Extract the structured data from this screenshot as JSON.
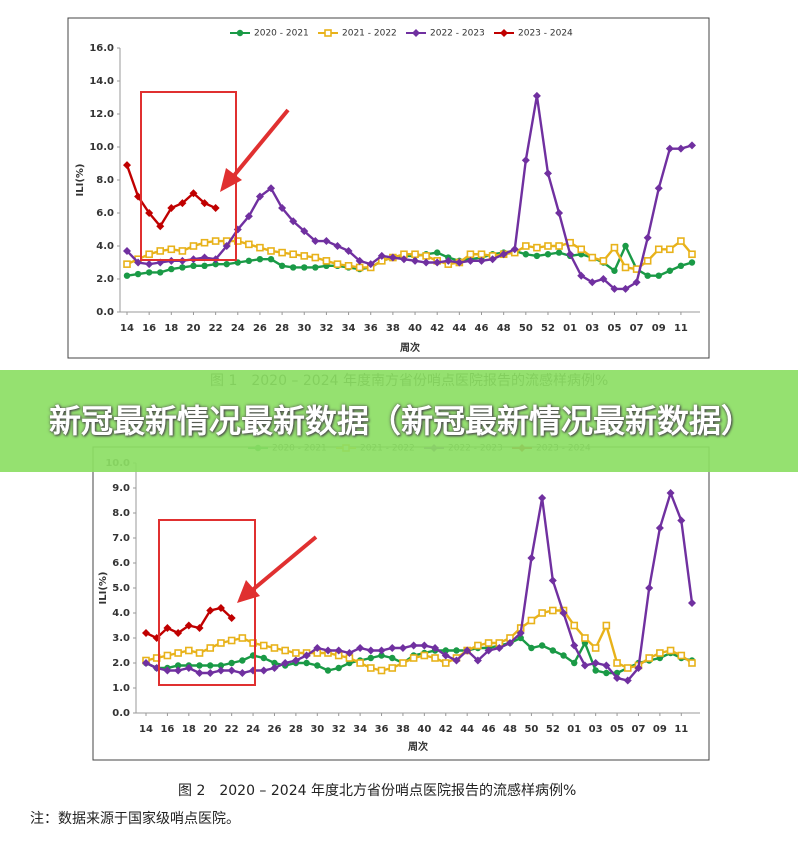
{
  "chart_data": [
    {
      "type": "line",
      "title": "图 1　2020 – 2024 年度南方省份哨点医院报告的流感样病例%",
      "x_label": "周次",
      "y_label": "ILI(%)",
      "categories": [
        "14",
        null,
        "16",
        null,
        "18",
        null,
        "20",
        null,
        "22",
        null,
        "24",
        null,
        "26",
        null,
        "28",
        null,
        "30",
        null,
        "32",
        null,
        "34",
        null,
        "36",
        null,
        "38",
        null,
        "40",
        null,
        "42",
        null,
        "44",
        null,
        "46",
        null,
        "48",
        null,
        "50",
        null,
        "52",
        null,
        "01",
        null,
        "03",
        null,
        "05",
        null,
        "07",
        null,
        "09",
        null,
        "11",
        null
      ],
      "ylim": [
        0,
        16
      ],
      "yticks": [
        {
          "value": 0,
          "label": "0.0"
        },
        {
          "value": 2,
          "label": "2.0"
        },
        {
          "value": 4,
          "label": "4.0"
        },
        {
          "value": 6,
          "label": "6.0"
        },
        {
          "value": 8,
          "label": "8.0"
        },
        {
          "value": 10,
          "label": "10.0"
        },
        {
          "value": 12,
          "label": "12.0"
        },
        {
          "value": 14,
          "label": "14.0"
        },
        {
          "value": 16,
          "label": "16.0"
        }
      ],
      "legend": "top",
      "series": [
        {
          "name": "2020 - 2021",
          "color": "#1a9a46",
          "marker": "circle",
          "values": [
            2.2,
            2.3,
            2.4,
            2.4,
            2.6,
            2.7,
            2.8,
            2.8,
            2.9,
            2.9,
            3.0,
            3.1,
            3.2,
            3.2,
            2.8,
            2.7,
            2.7,
            2.7,
            2.8,
            2.8,
            2.7,
            2.6,
            2.7,
            3.1,
            3.3,
            3.4,
            3.4,
            3.5,
            3.6,
            3.3,
            3.1,
            3.2,
            3.3,
            3.5,
            3.6,
            3.7,
            3.5,
            3.4,
            3.5,
            3.6,
            3.4,
            3.5,
            3.3,
            3.0,
            2.5,
            4.0,
            2.6,
            2.2,
            2.2,
            2.5,
            2.8,
            3.0
          ]
        },
        {
          "name": "2021 - 2022",
          "color": "#e8b21a",
          "marker": "square",
          "values": [
            2.9,
            3.2,
            3.5,
            3.7,
            3.8,
            3.7,
            4.0,
            4.2,
            4.3,
            4.3,
            4.3,
            4.1,
            3.9,
            3.7,
            3.6,
            3.5,
            3.4,
            3.3,
            3.1,
            2.9,
            2.8,
            2.7,
            2.7,
            3.1,
            3.3,
            3.5,
            3.5,
            3.4,
            3.1,
            2.9,
            3.0,
            3.5,
            3.5,
            3.4,
            3.5,
            3.6,
            4.0,
            3.9,
            4.0,
            4.0,
            4.2,
            3.8,
            3.3,
            3.1,
            3.9,
            2.7,
            2.6,
            3.1,
            3.8,
            3.8,
            4.3,
            3.5
          ]
        },
        {
          "name": "2022 - 2023",
          "color": "#7030a0",
          "marker": "diamond",
          "values": [
            3.7,
            3.0,
            2.9,
            3.0,
            3.1,
            3.1,
            3.2,
            3.3,
            3.2,
            4.0,
            5.0,
            5.8,
            7.0,
            7.5,
            6.3,
            5.5,
            4.9,
            4.3,
            4.3,
            4.0,
            3.7,
            3.1,
            2.9,
            3.4,
            3.3,
            3.2,
            3.1,
            3.0,
            3.0,
            3.1,
            3.0,
            3.1,
            3.1,
            3.2,
            3.5,
            3.8,
            9.2,
            13.1,
            8.4,
            6.0,
            3.5,
            2.2,
            1.8,
            2.0,
            1.4,
            1.4,
            1.8,
            4.5,
            7.5,
            9.9,
            9.9,
            10.1
          ]
        },
        {
          "name": "2023 - 2024",
          "color": "#c00000",
          "marker": "diamond",
          "values": [
            8.9,
            7.0,
            6.0,
            5.2,
            6.3,
            6.6,
            7.2,
            6.6,
            6.3,
            null,
            null,
            null,
            null,
            null,
            null,
            null,
            null,
            null,
            null,
            null,
            null,
            null,
            null,
            null,
            null,
            null,
            null,
            null,
            null,
            null,
            null,
            null,
            null,
            null,
            null,
            null,
            null,
            null,
            null,
            null,
            null,
            null,
            null,
            null,
            null,
            null,
            null,
            null,
            null,
            null,
            null,
            null
          ]
        }
      ]
    },
    {
      "type": "line",
      "title": "图 2　2020 – 2024 年度北方省份哨点医院报告的流感样病例%",
      "x_label": "周次",
      "y_label": "ILI(%)",
      "categories": [
        "14",
        null,
        "16",
        null,
        "18",
        null,
        "20",
        null,
        "22",
        null,
        "24",
        null,
        "26",
        null,
        "28",
        null,
        "30",
        null,
        "32",
        null,
        "34",
        null,
        "36",
        null,
        "38",
        null,
        "40",
        null,
        "42",
        null,
        "44",
        null,
        "46",
        null,
        "48",
        null,
        "50",
        null,
        "52",
        null,
        "01",
        null,
        "03",
        null,
        "05",
        null,
        "07",
        null,
        "09",
        null,
        "11",
        null
      ],
      "ylim": [
        0,
        10
      ],
      "yticks": [
        {
          "value": 0,
          "label": "0.0"
        },
        {
          "value": 1,
          "label": "1.0"
        },
        {
          "value": 2,
          "label": "2.0"
        },
        {
          "value": 3,
          "label": "3.0"
        },
        {
          "value": 4,
          "label": "4.0"
        },
        {
          "value": 5,
          "label": "5.0"
        },
        {
          "value": 6,
          "label": "6.0"
        },
        {
          "value": 7,
          "label": "7.0"
        },
        {
          "value": 8,
          "label": "8.0"
        },
        {
          "value": 9,
          "label": "9.0"
        },
        {
          "value": 10,
          "label": "10.0"
        }
      ],
      "legend": "top",
      "series": [
        {
          "name": "2020 - 2021",
          "color": "#1a9a46",
          "marker": "circle",
          "values": [
            2.0,
            1.8,
            1.8,
            1.9,
            1.9,
            1.9,
            1.9,
            1.9,
            2.0,
            2.1,
            2.3,
            2.2,
            2.0,
            1.9,
            2.0,
            2.0,
            1.9,
            1.7,
            1.8,
            2.0,
            2.1,
            2.2,
            2.3,
            2.2,
            2.0,
            2.3,
            2.4,
            2.5,
            2.5,
            2.5,
            2.5,
            2.6,
            2.6,
            2.7,
            2.8,
            3.0,
            2.6,
            2.7,
            2.5,
            2.3,
            2.0,
            2.8,
            1.7,
            1.6,
            1.6,
            1.8,
            2.0,
            2.1,
            2.2,
            2.4,
            2.2,
            2.1
          ]
        },
        {
          "name": "2021 - 2022",
          "color": "#e8b21a",
          "marker": "square",
          "values": [
            2.1,
            2.2,
            2.3,
            2.4,
            2.5,
            2.4,
            2.6,
            2.8,
            2.9,
            3.0,
            2.8,
            2.7,
            2.6,
            2.5,
            2.4,
            2.4,
            2.4,
            2.4,
            2.3,
            2.2,
            2.0,
            1.8,
            1.7,
            1.8,
            2.0,
            2.2,
            2.3,
            2.2,
            2.0,
            2.2,
            2.5,
            2.7,
            2.8,
            2.8,
            3.0,
            3.4,
            3.7,
            4.0,
            4.1,
            4.1,
            3.5,
            3.0,
            2.6,
            3.5,
            2.0,
            1.8,
            1.9,
            2.2,
            2.4,
            2.5,
            2.3,
            2.0
          ]
        },
        {
          "name": "2022 - 2023",
          "color": "#7030a0",
          "marker": "diamond",
          "values": [
            2.0,
            1.8,
            1.7,
            1.7,
            1.8,
            1.6,
            1.6,
            1.7,
            1.7,
            1.6,
            1.7,
            1.7,
            1.8,
            2.0,
            2.1,
            2.3,
            2.6,
            2.5,
            2.5,
            2.4,
            2.6,
            2.5,
            2.5,
            2.6,
            2.6,
            2.7,
            2.7,
            2.6,
            2.3,
            2.1,
            2.5,
            2.1,
            2.5,
            2.6,
            2.8,
            3.2,
            6.2,
            8.6,
            5.3,
            4.0,
            2.7,
            1.9,
            2.0,
            1.9,
            1.4,
            1.3,
            1.8,
            5.0,
            7.4,
            8.8,
            7.7,
            4.4
          ]
        },
        {
          "name": "2023 - 2024",
          "color": "#c00000",
          "marker": "diamond",
          "values": [
            3.2,
            3.0,
            3.4,
            3.2,
            3.5,
            3.4,
            4.1,
            4.2,
            3.8,
            null,
            null,
            null,
            null,
            null,
            null,
            null,
            null,
            null,
            null,
            null,
            null,
            null,
            null,
            null,
            null,
            null,
            null,
            null,
            null,
            null,
            null,
            null,
            null,
            null,
            null,
            null,
            null,
            null,
            null,
            null,
            null,
            null,
            null,
            null,
            null,
            null,
            null,
            null,
            null,
            null,
            null,
            null
          ]
        }
      ]
    }
  ],
  "banner": "新冠最新情况最新数据（新冠最新情况最新数据）",
  "note": "注：数据来源于国家级哨点医院。"
}
